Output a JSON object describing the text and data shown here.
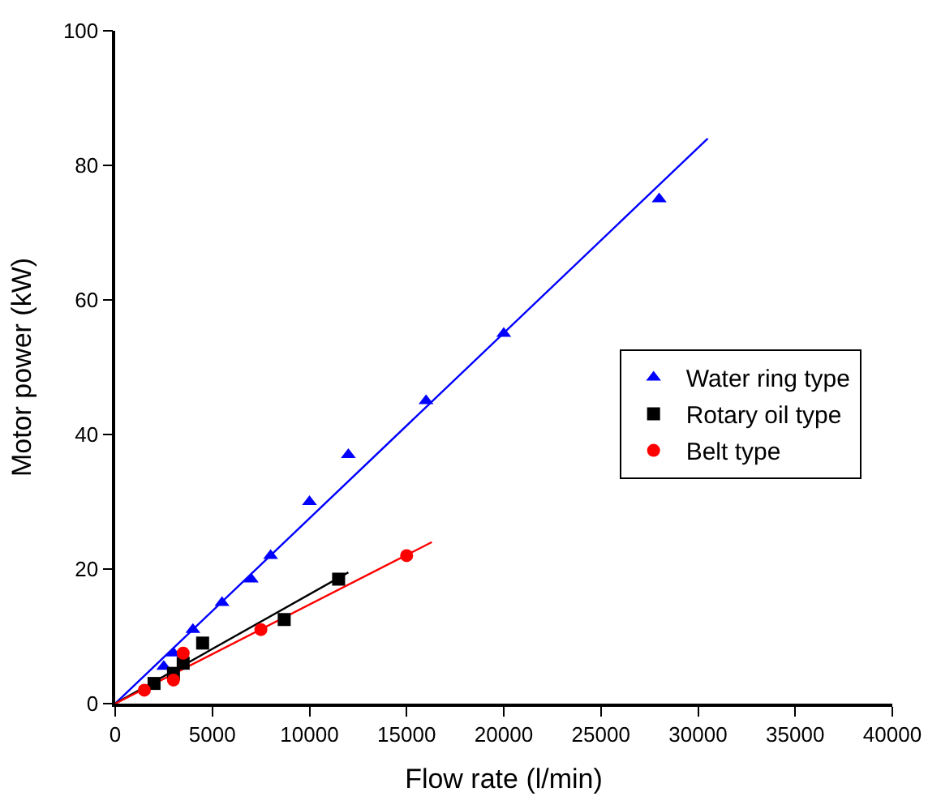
{
  "chart_data": {
    "type": "scatter",
    "xlabel": "Flow rate (l/min)",
    "ylabel": "Motor power (kW)",
    "xlim": [
      0,
      40000
    ],
    "ylim": [
      0,
      100
    ],
    "xticks": [
      0,
      5000,
      10000,
      15000,
      20000,
      25000,
      30000,
      35000,
      40000
    ],
    "yticks": [
      0,
      20,
      40,
      60,
      80,
      100
    ],
    "legend": "right",
    "series": [
      {
        "name": "Water ring type",
        "color": "#0000ff",
        "marker": "triangle",
        "x": [
          2500,
          3000,
          4000,
          5500,
          7000,
          8000,
          10000,
          12000,
          16000,
          20000,
          28000
        ],
        "values": [
          5.5,
          7.5,
          11,
          15,
          18.5,
          22,
          30,
          37,
          45,
          55,
          75
        ]
      },
      {
        "name": "Rotary oil type",
        "color": "#000000",
        "marker": "square",
        "x": [
          2000,
          3000,
          3500,
          4500,
          8700,
          11500
        ],
        "values": [
          3,
          4.5,
          6,
          9,
          12.5,
          18.5
        ]
      },
      {
        "name": "Belt type",
        "color": "#ff0000",
        "marker": "circle",
        "x": [
          1500,
          3000,
          3500,
          7500,
          15000
        ],
        "values": [
          2,
          3.5,
          7.5,
          11,
          22
        ]
      },
      {
        "type": "line",
        "color": "#0000ff",
        "x": [
          0,
          30500
        ],
        "values": [
          0,
          84
        ]
      },
      {
        "type": "line",
        "color": "#000000",
        "x": [
          0,
          12000
        ],
        "values": [
          0,
          19.5
        ]
      },
      {
        "type": "line",
        "color": "#ff0000",
        "x": [
          0,
          16300
        ],
        "values": [
          0,
          24
        ]
      }
    ]
  }
}
